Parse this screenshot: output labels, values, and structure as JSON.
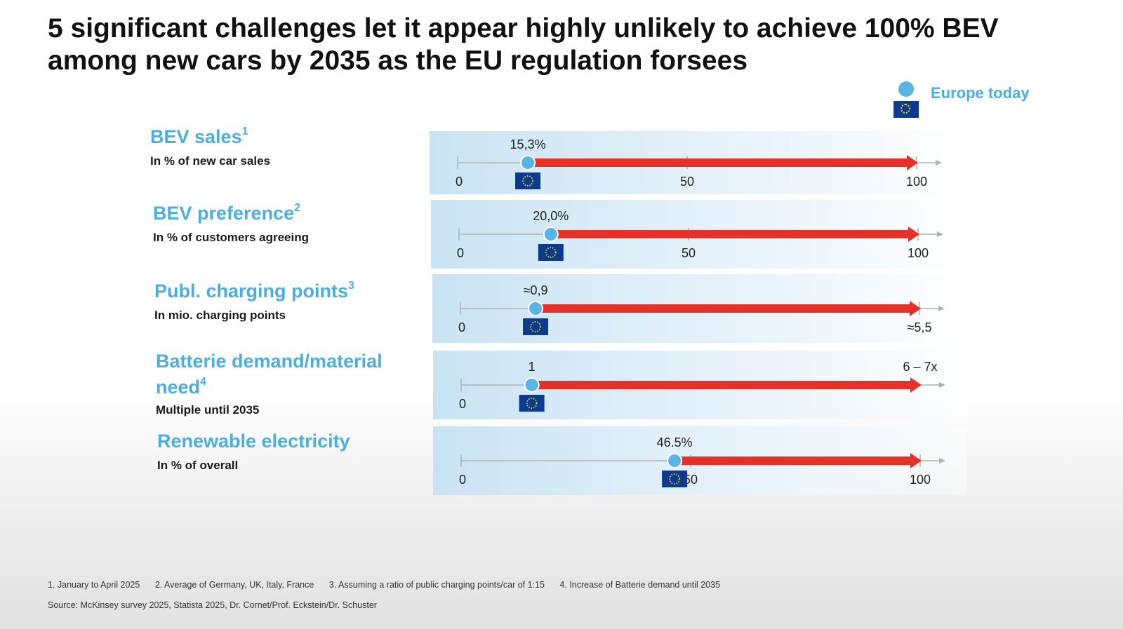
{
  "title_line1": "5 significant challenges let it appear highly unlikely to achieve 100% BEV",
  "title_line2": "among new cars by 2035 as the EU regulation forsees",
  "legend": {
    "label": "Europe today",
    "dot_color": "#58b4e6",
    "text_color": "#4aaee0"
  },
  "colors": {
    "arrow": "#e53127",
    "marker": "#58b4e6",
    "axis": "#b0b0b0",
    "label": "#4aaee0",
    "flag": "#0b3b91"
  },
  "chart_data": [
    {
      "type": "bar",
      "title": "BEV sales",
      "title_sup": "1",
      "subtitle": "In % of new car sales",
      "today_value": 15.3,
      "today_label": "15,3%",
      "target_value": 100,
      "xlim": [
        0,
        100
      ],
      "ticks": [
        {
          "value": 0,
          "label": "0"
        },
        {
          "value": 50,
          "label": "50"
        },
        {
          "value": 100,
          "label": "100"
        }
      ],
      "target_label": ""
    },
    {
      "type": "bar",
      "title": "BEV preference",
      "title_sup": "2",
      "subtitle": "In % of customers agreeing",
      "today_value": 20.0,
      "today_label": "20,0%",
      "target_value": 100,
      "xlim": [
        0,
        100
      ],
      "ticks": [
        {
          "value": 0,
          "label": "0"
        },
        {
          "value": 50,
          "label": "50"
        },
        {
          "value": 100,
          "label": "100"
        }
      ],
      "target_label": ""
    },
    {
      "type": "bar",
      "title": "Publ. charging points",
      "title_sup": "3",
      "subtitle": "In mio. charging points",
      "today_value": 0.9,
      "today_label": "≈0,9",
      "target_value": 5.5,
      "xlim": [
        0,
        5.5
      ],
      "ticks": [
        {
          "value": 0,
          "label": "0"
        },
        {
          "value": 5.5,
          "label": "≈5,5"
        }
      ],
      "target_label": ""
    },
    {
      "type": "bar",
      "title": "Batterie demand/material need",
      "title_sup": "4",
      "subtitle": "Multiple until 2035",
      "today_value": 1,
      "today_label": "1",
      "target_value": 6.5,
      "xlim": [
        0,
        6.5
      ],
      "ticks": [
        {
          "value": 0,
          "label": "0"
        }
      ],
      "target_label": "6 – 7x"
    },
    {
      "type": "bar",
      "title": "Renewable electricity",
      "title_sup": "",
      "subtitle": "In % of overall",
      "today_value": 46.5,
      "today_label": "46.5%",
      "target_value": 100,
      "xlim": [
        0,
        100
      ],
      "ticks": [
        {
          "value": 0,
          "label": "0"
        },
        {
          "value": 50,
          "label": "50"
        },
        {
          "value": 100,
          "label": "100"
        }
      ],
      "target_label": ""
    }
  ],
  "footnotes": [
    "1. January to April 2025",
    "2. Average of Germany, UK, Italy, France",
    "3. Assuming a ratio of public charging points/car of 1:15",
    "4. Increase of Batterie demand until 2035"
  ],
  "source": "Source: McKinsey survey 2025, Statista 2025, Dr. Cornet/Prof. Eckstein/Dr. Schuster"
}
